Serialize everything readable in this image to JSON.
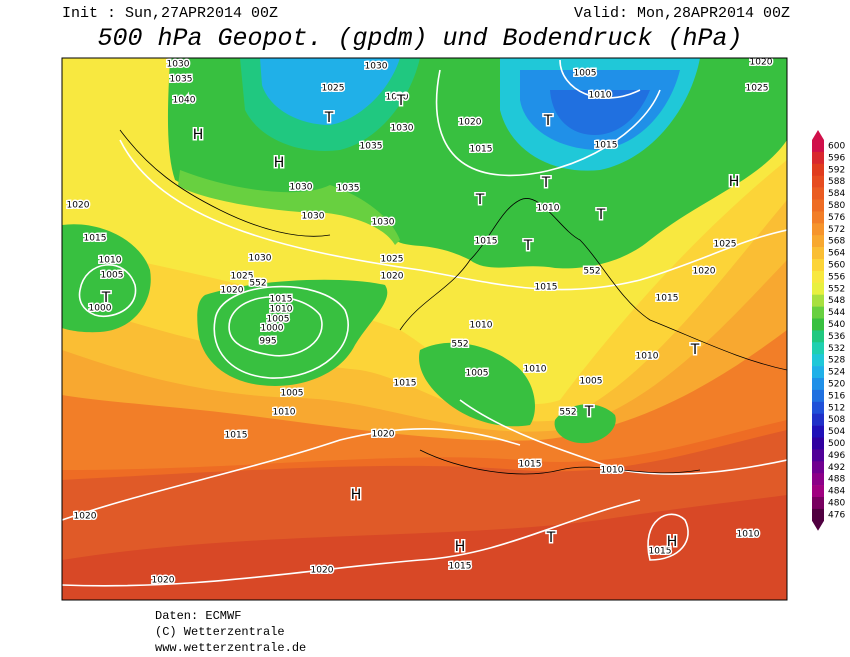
{
  "header": {
    "init": "Init : Sun,27APR2014 00Z",
    "valid": "Valid: Mon,28APR2014 00Z",
    "title": "500 hPa Geopot. (gpdm) und Bodendruck (hPa)"
  },
  "colorbar": {
    "ticks": [
      600,
      596,
      592,
      588,
      584,
      580,
      576,
      572,
      568,
      564,
      560,
      556,
      552,
      548,
      544,
      540,
      536,
      532,
      528,
      524,
      520,
      516,
      512,
      508,
      504,
      500,
      496,
      492,
      488,
      484,
      480,
      476
    ],
    "colors": [
      "#d0104a",
      "#d8282e",
      "#e03c1e",
      "#e64c20",
      "#ea5c22",
      "#ee6c24",
      "#f27e28",
      "#f6942c",
      "#f8a830",
      "#fabe34",
      "#fcd438",
      "#f8e840",
      "#e8f040",
      "#a8e040",
      "#68d040",
      "#38c040",
      "#20c880",
      "#20d0b0",
      "#20c8d8",
      "#20b0e8",
      "#2090e8",
      "#2070e0",
      "#2050d8",
      "#2030c8",
      "#2010b8",
      "#3000a0",
      "#500098",
      "#700090",
      "#8c0088",
      "#a00080",
      "#780060",
      "#500040"
    ]
  },
  "map_labels": [
    "1030",
    "1035",
    "1040",
    "H",
    "1025",
    "T",
    "1030",
    "1030",
    "T",
    "1030",
    "1035",
    "H",
    "1030",
    "1035",
    "1030",
    "1030",
    "1020",
    "1015",
    "1010",
    "1005",
    "T",
    "1000",
    "1030",
    "1025",
    "1020",
    "552",
    "1015",
    "1010",
    "1005",
    "1000",
    "995",
    "1005",
    "1010",
    "1015",
    "1020",
    "1015",
    "1020",
    "1025",
    "1020",
    "1015",
    "1005",
    "1010",
    "T",
    "1015",
    "T",
    "T",
    "1010",
    "T",
    "1015",
    "T",
    "552",
    "1015",
    "1010",
    "552",
    "1005",
    "1010",
    "1005",
    "552",
    "T",
    "1015",
    "1010",
    "H",
    "1020",
    "H",
    "T",
    "1015",
    "1015",
    "H",
    "1010",
    "1020",
    "1020",
    "1010",
    "T",
    "1015",
    "1020",
    "1025",
    "H",
    "1020",
    "1025"
  ],
  "footer": {
    "source": "Daten: ECMWF",
    "copyright": "(C) Wetterzentrale",
    "url": "www.wetterzentrale.de"
  }
}
